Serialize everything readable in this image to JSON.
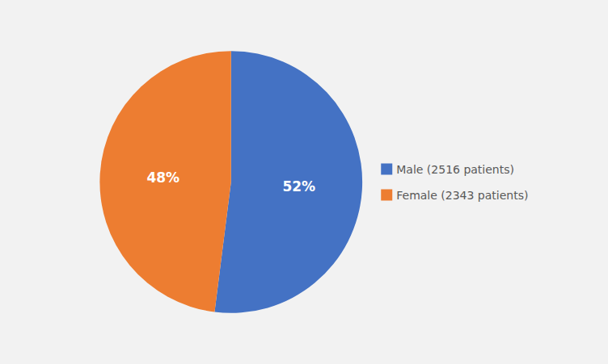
{
  "chart_data": {
    "type": "pie",
    "categories": [
      "Male (2516 patients)",
      "Female (2343 patients)"
    ],
    "values": [
      52,
      48
    ],
    "value_labels": [
      "52%",
      "48%"
    ],
    "colors": [
      "#4472C4",
      "#ED7D31"
    ],
    "data_labels": true,
    "legend": "right"
  }
}
